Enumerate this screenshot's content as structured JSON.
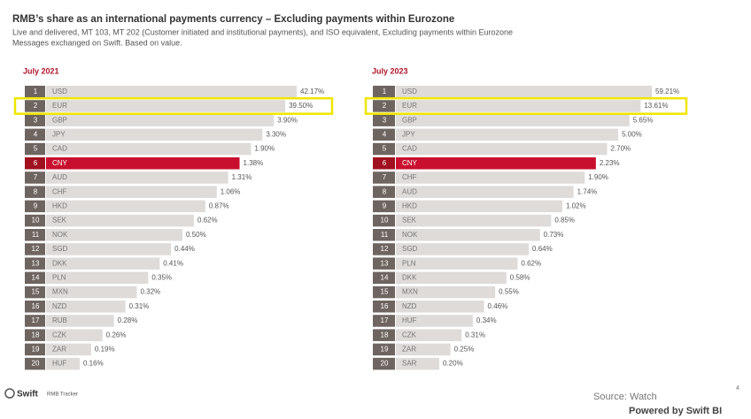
{
  "header": {
    "title": "RMB’s share as an international payments currency – Excluding payments within Eurozone",
    "subtitle_lines": [
      "Live and delivered, MT 103, MT 202 (Customer initiated and institutional payments), and ISO equivalent, Excluding payments within Eurozone",
      "Messages exchanged on Swift. Based on value."
    ]
  },
  "panels": [
    {
      "title": "July 2021",
      "rows": [
        {
          "rank": 1,
          "currency": "USD",
          "share": "42.17%"
        },
        {
          "rank": 2,
          "currency": "EUR",
          "share": "39.50%"
        },
        {
          "rank": 3,
          "currency": "GBP",
          "share": "3.90%"
        },
        {
          "rank": 4,
          "currency": "JPY",
          "share": "3.30%"
        },
        {
          "rank": 5,
          "currency": "CAD",
          "share": "1.90%"
        },
        {
          "rank": 6,
          "currency": "CNY",
          "share": "1.38%"
        },
        {
          "rank": 7,
          "currency": "AUD",
          "share": "1.31%"
        },
        {
          "rank": 8,
          "currency": "CHF",
          "share": "1.06%"
        },
        {
          "rank": 9,
          "currency": "HKD",
          "share": "0.87%"
        },
        {
          "rank": 10,
          "currency": "SEK",
          "share": "0.62%"
        },
        {
          "rank": 11,
          "currency": "NOK",
          "share": "0.50%"
        },
        {
          "rank": 12,
          "currency": "SGD",
          "share": "0.44%"
        },
        {
          "rank": 13,
          "currency": "DKK",
          "share": "0.41%"
        },
        {
          "rank": 14,
          "currency": "PLN",
          "share": "0.35%"
        },
        {
          "rank": 15,
          "currency": "MXN",
          "share": "0.32%"
        },
        {
          "rank": 16,
          "currency": "NZD",
          "share": "0.31%"
        },
        {
          "rank": 17,
          "currency": "RUB",
          "share": "0.28%"
        },
        {
          "rank": 18,
          "currency": "CZK",
          "share": "0.26%"
        },
        {
          "rank": 19,
          "currency": "ZAR",
          "share": "0.19%"
        },
        {
          "rank": 20,
          "currency": "HUF",
          "share": "0.16%"
        }
      ]
    },
    {
      "title": "July 2023",
      "rows": [
        {
          "rank": 1,
          "currency": "USD",
          "share": "59.21%"
        },
        {
          "rank": 2,
          "currency": "EUR",
          "share": "13.61%"
        },
        {
          "rank": 3,
          "currency": "GBP",
          "share": "5.65%"
        },
        {
          "rank": 4,
          "currency": "JPY",
          "share": "5.00%"
        },
        {
          "rank": 5,
          "currency": "CAD",
          "share": "2.70%"
        },
        {
          "rank": 6,
          "currency": "CNY",
          "share": "2.23%"
        },
        {
          "rank": 7,
          "currency": "CHF",
          "share": "1.90%"
        },
        {
          "rank": 8,
          "currency": "AUD",
          "share": "1.74%"
        },
        {
          "rank": 9,
          "currency": "HKD",
          "share": "1.02%"
        },
        {
          "rank": 10,
          "currency": "SEK",
          "share": "0.85%"
        },
        {
          "rank": 11,
          "currency": "NOK",
          "share": "0.73%"
        },
        {
          "rank": 12,
          "currency": "SGD",
          "share": "0.64%"
        },
        {
          "rank": 13,
          "currency": "PLN",
          "share": "0.62%"
        },
        {
          "rank": 14,
          "currency": "DKK",
          "share": "0.58%"
        },
        {
          "rank": 15,
          "currency": "MXN",
          "share": "0.55%"
        },
        {
          "rank": 16,
          "currency": "NZD",
          "share": "0.46%"
        },
        {
          "rank": 17,
          "currency": "HUF",
          "share": "0.34%"
        },
        {
          "rank": 18,
          "currency": "CZK",
          "share": "0.31%"
        },
        {
          "rank": 19,
          "currency": "ZAR",
          "share": "0.25%"
        },
        {
          "rank": 20,
          "currency": "SAR",
          "share": "0.20%"
        }
      ]
    }
  ],
  "footer": {
    "logo": "Swift",
    "logo_sub": "RMB Tracker",
    "source": "Source: Watch",
    "page": 4,
    "powered": "Powered by Swift BI"
  }
}
